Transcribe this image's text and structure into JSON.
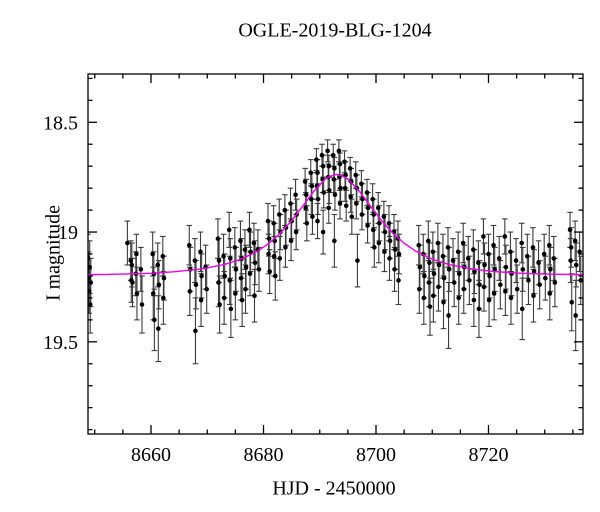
{
  "figure": {
    "title": "OGLE-2019-BLG-1204",
    "xlabel": "HJD - 2450000",
    "ylabel": "I magnitude"
  },
  "chart_data": {
    "type": "scatter",
    "title": "OGLE-2019-BLG-1204",
    "xlabel": "HJD - 2450000",
    "ylabel": "I magnitude",
    "y_axis_inverted": true,
    "grid": false,
    "legend": "none",
    "xlim": [
      8648.8,
      8736.8
    ],
    "ylim": [
      18.28,
      19.92
    ],
    "x_major_ticks": [
      8660,
      8680,
      8700,
      8720
    ],
    "x_major_labels": [
      "8660",
      "8680",
      "8700",
      "8720"
    ],
    "x_minor_step": 5,
    "y_major_ticks": [
      18.5,
      19.0,
      19.5
    ],
    "y_major_labels": [
      "18.5",
      "19",
      "19.5"
    ],
    "y_minor_step": 0.1,
    "colors": {
      "points": "#000000",
      "error_bars": "#3d3d3d",
      "model_curve": "#ee00ee",
      "axis": "#000000",
      "background": "#ffffff"
    },
    "model_curve": [
      [
        8648.8,
        19.194
      ],
      [
        8652,
        19.193
      ],
      [
        8656,
        19.191
      ],
      [
        8660,
        19.188
      ],
      [
        8664,
        19.181
      ],
      [
        8669,
        19.168
      ],
      [
        8673,
        19.148
      ],
      [
        8676,
        19.124
      ],
      [
        8679,
        19.086
      ],
      [
        8681,
        19.051
      ],
      [
        8683,
        19.005
      ],
      [
        8685,
        18.948
      ],
      [
        8687,
        18.881
      ],
      [
        8689,
        18.813
      ],
      [
        8691,
        18.758
      ],
      [
        8692,
        18.745
      ],
      [
        8693,
        18.737
      ],
      [
        8694,
        18.745
      ],
      [
        8695,
        18.758
      ],
      [
        8697,
        18.813
      ],
      [
        8699,
        18.881
      ],
      [
        8701,
        18.948
      ],
      [
        8703,
        19.005
      ],
      [
        8705,
        19.051
      ],
      [
        8707,
        19.086
      ],
      [
        8710,
        19.124
      ],
      [
        8713,
        19.148
      ],
      [
        8717,
        19.168
      ],
      [
        8721,
        19.18
      ],
      [
        8726,
        19.188
      ],
      [
        8731,
        19.192
      ],
      [
        8736.8,
        19.194
      ]
    ],
    "points": [
      [
        8648.8,
        19.12,
        0.11
      ],
      [
        8648.9,
        19.21,
        0.12
      ],
      [
        8649.0,
        19.27,
        0.1
      ],
      [
        8649.1,
        19.16,
        0.12
      ],
      [
        8649.2,
        19.33,
        0.13
      ],
      [
        8649.3,
        19.23,
        0.11
      ],
      [
        8655.8,
        19.05,
        0.1
      ],
      [
        8656.4,
        19.13,
        0.09
      ],
      [
        8656.6,
        19.15,
        0.1
      ],
      [
        8656.5,
        19.22,
        0.1
      ],
      [
        8656.7,
        19.23,
        0.11
      ],
      [
        8657.3,
        19.19,
        0.1
      ],
      [
        8657.4,
        19.1,
        0.09
      ],
      [
        8657.5,
        19.28,
        0.12
      ],
      [
        8658.2,
        19.17,
        0.1
      ],
      [
        8658.4,
        19.33,
        0.13
      ],
      [
        8660.3,
        19.1,
        0.1
      ],
      [
        8660.5,
        19.19,
        0.1
      ],
      [
        8660.4,
        19.28,
        0.12
      ],
      [
        8660.6,
        19.4,
        0.14
      ],
      [
        8661.2,
        19.15,
        0.1
      ],
      [
        8661.4,
        19.24,
        0.11
      ],
      [
        8661.3,
        19.44,
        0.15
      ],
      [
        8662.1,
        19.11,
        0.09
      ],
      [
        8662.3,
        19.21,
        0.1
      ],
      [
        8662.2,
        19.3,
        0.12
      ],
      [
        8666.8,
        19.06,
        0.09
      ],
      [
        8667.0,
        19.17,
        0.1
      ],
      [
        8666.9,
        19.27,
        0.11
      ],
      [
        8667.8,
        19.13,
        0.1
      ],
      [
        8668.0,
        19.24,
        0.11
      ],
      [
        8667.9,
        19.45,
        0.15
      ],
      [
        8668.8,
        19.09,
        0.09
      ],
      [
        8669.0,
        19.2,
        0.1
      ],
      [
        8668.9,
        19.31,
        0.12
      ],
      [
        8669.7,
        19.16,
        0.1
      ],
      [
        8669.9,
        19.26,
        0.11
      ],
      [
        8671.9,
        19.03,
        0.09
      ],
      [
        8672.1,
        19.13,
        0.1
      ],
      [
        8672.0,
        19.23,
        0.11
      ],
      [
        8672.2,
        19.33,
        0.13
      ],
      [
        8672.9,
        19.11,
        0.1
      ],
      [
        8673.1,
        19.2,
        0.1
      ],
      [
        8673.0,
        19.3,
        0.12
      ],
      [
        8673.9,
        18.99,
        0.08
      ],
      [
        8674.1,
        19.12,
        0.09
      ],
      [
        8674.0,
        19.22,
        0.11
      ],
      [
        8674.2,
        19.35,
        0.13
      ],
      [
        8674.9,
        19.07,
        0.09
      ],
      [
        8675.1,
        19.17,
        0.1
      ],
      [
        8675.0,
        19.28,
        0.12
      ],
      [
        8675.9,
        19.04,
        0.09
      ],
      [
        8676.1,
        19.12,
        0.09
      ],
      [
        8676.0,
        19.21,
        0.1
      ],
      [
        8676.2,
        19.31,
        0.12
      ],
      [
        8676.7,
        19.08,
        0.09
      ],
      [
        8676.9,
        19.16,
        0.1
      ],
      [
        8676.8,
        19.26,
        0.11
      ],
      [
        8677.5,
        18.99,
        0.08
      ],
      [
        8677.7,
        19.09,
        0.09
      ],
      [
        8677.6,
        19.19,
        0.1
      ],
      [
        8678.3,
        19.05,
        0.09
      ],
      [
        8678.5,
        19.14,
        0.1
      ],
      [
        8678.4,
        19.29,
        0.12
      ],
      [
        8679.0,
        19.08,
        0.09
      ],
      [
        8679.2,
        19.17,
        0.1
      ],
      [
        8680.8,
        18.95,
        0.08
      ],
      [
        8681.0,
        19.03,
        0.08
      ],
      [
        8680.9,
        19.1,
        0.09
      ],
      [
        8681.1,
        19.18,
        0.1
      ],
      [
        8681.8,
        18.96,
        0.08
      ],
      [
        8682.0,
        19.04,
        0.08
      ],
      [
        8681.9,
        19.11,
        0.09
      ],
      [
        8682.1,
        19.2,
        0.11
      ],
      [
        8682.8,
        18.92,
        0.07
      ],
      [
        8683.0,
        19.0,
        0.08
      ],
      [
        8682.9,
        19.12,
        0.1
      ],
      [
        8683.8,
        18.9,
        0.07
      ],
      [
        8684.0,
        18.98,
        0.08
      ],
      [
        8683.9,
        19.07,
        0.09
      ],
      [
        8684.8,
        18.87,
        0.07
      ],
      [
        8685.0,
        18.95,
        0.08
      ],
      [
        8684.9,
        19.04,
        0.09
      ],
      [
        8685.7,
        18.83,
        0.07
      ],
      [
        8685.9,
        18.92,
        0.07
      ],
      [
        8685.8,
        19.0,
        0.08
      ],
      [
        8687.4,
        18.77,
        0.06
      ],
      [
        8687.6,
        18.83,
        0.07
      ],
      [
        8687.5,
        18.89,
        0.07
      ],
      [
        8687.7,
        18.96,
        0.08
      ],
      [
        8688.4,
        18.73,
        0.06
      ],
      [
        8688.6,
        18.79,
        0.06
      ],
      [
        8688.5,
        18.85,
        0.07
      ],
      [
        8688.7,
        18.93,
        0.08
      ],
      [
        8689.4,
        18.67,
        0.05
      ],
      [
        8689.6,
        18.73,
        0.06
      ],
      [
        8689.5,
        18.79,
        0.06
      ],
      [
        8689.7,
        18.85,
        0.07
      ],
      [
        8689.6,
        18.95,
        0.08
      ],
      [
        8690.4,
        18.65,
        0.05
      ],
      [
        8690.6,
        18.7,
        0.05
      ],
      [
        8690.5,
        18.76,
        0.06
      ],
      [
        8690.7,
        18.82,
        0.07
      ],
      [
        8690.6,
        19.0,
        0.1
      ],
      [
        8691.4,
        18.63,
        0.05
      ],
      [
        8691.6,
        18.7,
        0.05
      ],
      [
        8691.5,
        18.75,
        0.06
      ],
      [
        8691.7,
        18.81,
        0.06
      ],
      [
        8691.6,
        18.89,
        0.07
      ],
      [
        8692.4,
        18.65,
        0.05
      ],
      [
        8692.6,
        18.71,
        0.05
      ],
      [
        8692.5,
        18.76,
        0.06
      ],
      [
        8692.7,
        18.83,
        0.07
      ],
      [
        8692.6,
        19.04,
        0.12
      ],
      [
        8693.4,
        18.63,
        0.05
      ],
      [
        8693.6,
        18.69,
        0.05
      ],
      [
        8693.5,
        18.75,
        0.06
      ],
      [
        8693.7,
        18.8,
        0.06
      ],
      [
        8693.6,
        18.87,
        0.07
      ],
      [
        8694.4,
        18.68,
        0.05
      ],
      [
        8694.6,
        18.74,
        0.06
      ],
      [
        8694.5,
        18.8,
        0.06
      ],
      [
        8694.7,
        18.88,
        0.07
      ],
      [
        8695.4,
        18.71,
        0.05
      ],
      [
        8695.6,
        18.77,
        0.06
      ],
      [
        8695.5,
        18.84,
        0.07
      ],
      [
        8695.7,
        18.93,
        0.08
      ],
      [
        8696.4,
        18.74,
        0.06
      ],
      [
        8696.6,
        18.8,
        0.06
      ],
      [
        8696.5,
        18.87,
        0.07
      ],
      [
        8696.7,
        19.13,
        0.12
      ],
      [
        8697.4,
        18.78,
        0.06
      ],
      [
        8697.6,
        18.85,
        0.07
      ],
      [
        8697.5,
        18.92,
        0.07
      ],
      [
        8698.4,
        18.82,
        0.06
      ],
      [
        8698.6,
        18.89,
        0.07
      ],
      [
        8698.5,
        18.97,
        0.08
      ],
      [
        8699.4,
        18.85,
        0.07
      ],
      [
        8699.6,
        18.92,
        0.07
      ],
      [
        8699.5,
        18.99,
        0.08
      ],
      [
        8699.7,
        19.07,
        0.09
      ],
      [
        8700.4,
        18.89,
        0.07
      ],
      [
        8700.6,
        18.96,
        0.08
      ],
      [
        8700.5,
        19.05,
        0.09
      ],
      [
        8701.4,
        18.93,
        0.07
      ],
      [
        8701.6,
        19.0,
        0.08
      ],
      [
        8701.5,
        19.09,
        0.09
      ],
      [
        8702.3,
        18.96,
        0.08
      ],
      [
        8702.5,
        19.04,
        0.08
      ],
      [
        8702.4,
        19.12,
        0.1
      ],
      [
        8703.2,
        19.0,
        0.08
      ],
      [
        8703.4,
        19.08,
        0.09
      ],
      [
        8703.3,
        19.17,
        0.1
      ],
      [
        8703.9,
        19.03,
        0.08
      ],
      [
        8704.1,
        19.1,
        0.09
      ],
      [
        8704.0,
        19.22,
        0.11
      ],
      [
        8707.6,
        19.06,
        0.09
      ],
      [
        8707.8,
        19.16,
        0.1
      ],
      [
        8707.7,
        19.26,
        0.11
      ],
      [
        8708.4,
        19.1,
        0.09
      ],
      [
        8708.6,
        19.2,
        0.1
      ],
      [
        8708.5,
        19.3,
        0.12
      ],
      [
        8709.3,
        19.04,
        0.09
      ],
      [
        8709.5,
        19.14,
        0.09
      ],
      [
        8709.4,
        19.23,
        0.11
      ],
      [
        8709.6,
        19.34,
        0.13
      ],
      [
        8710.1,
        19.09,
        0.09
      ],
      [
        8710.3,
        19.19,
        0.1
      ],
      [
        8710.2,
        19.29,
        0.12
      ],
      [
        8711.0,
        19.05,
        0.09
      ],
      [
        8711.2,
        19.15,
        0.1
      ],
      [
        8711.1,
        19.25,
        0.11
      ],
      [
        8711.9,
        19.11,
        0.1
      ],
      [
        8712.1,
        19.21,
        0.1
      ],
      [
        8712.0,
        19.32,
        0.12
      ],
      [
        8712.8,
        19.07,
        0.09
      ],
      [
        8713.0,
        19.17,
        0.1
      ],
      [
        8712.9,
        19.38,
        0.15
      ],
      [
        8713.7,
        19.13,
        0.1
      ],
      [
        8713.9,
        19.23,
        0.11
      ],
      [
        8714.6,
        19.09,
        0.09
      ],
      [
        8714.8,
        19.19,
        0.1
      ],
      [
        8714.7,
        19.3,
        0.12
      ],
      [
        8715.5,
        19.05,
        0.09
      ],
      [
        8715.7,
        19.16,
        0.1
      ],
      [
        8715.6,
        19.26,
        0.11
      ],
      [
        8716.4,
        19.12,
        0.1
      ],
      [
        8716.6,
        19.22,
        0.11
      ],
      [
        8717.3,
        19.08,
        0.09
      ],
      [
        8717.5,
        19.18,
        0.1
      ],
      [
        8717.4,
        19.31,
        0.12
      ],
      [
        8718.2,
        19.14,
        0.1
      ],
      [
        8718.4,
        19.24,
        0.11
      ],
      [
        8718.3,
        19.35,
        0.13
      ],
      [
        8719.1,
        19.02,
        0.08
      ],
      [
        8719.3,
        19.15,
        0.1
      ],
      [
        8719.2,
        19.25,
        0.11
      ],
      [
        8720.0,
        19.1,
        0.09
      ],
      [
        8720.2,
        19.2,
        0.1
      ],
      [
        8720.1,
        19.31,
        0.12
      ],
      [
        8720.9,
        19.06,
        0.09
      ],
      [
        8721.1,
        19.17,
        0.1
      ],
      [
        8721.0,
        19.28,
        0.12
      ],
      [
        8721.9,
        19.12,
        0.1
      ],
      [
        8722.1,
        19.24,
        0.11
      ],
      [
        8722.9,
        19.02,
        0.08
      ],
      [
        8723.1,
        19.16,
        0.1
      ],
      [
        8723.0,
        19.27,
        0.11
      ],
      [
        8723.9,
        19.09,
        0.09
      ],
      [
        8724.1,
        19.19,
        0.1
      ],
      [
        8724.0,
        19.3,
        0.12
      ],
      [
        8724.9,
        19.13,
        0.1
      ],
      [
        8725.1,
        19.26,
        0.11
      ],
      [
        8725.9,
        19.05,
        0.09
      ],
      [
        8726.1,
        19.17,
        0.1
      ],
      [
        8726.0,
        19.35,
        0.14
      ],
      [
        8726.9,
        19.11,
        0.1
      ],
      [
        8727.1,
        19.22,
        0.11
      ],
      [
        8727.9,
        19.07,
        0.09
      ],
      [
        8728.1,
        19.18,
        0.1
      ],
      [
        8728.0,
        19.29,
        0.12
      ],
      [
        8728.9,
        19.14,
        0.1
      ],
      [
        8729.1,
        19.24,
        0.11
      ],
      [
        8729.9,
        19.1,
        0.09
      ],
      [
        8730.1,
        19.21,
        0.1
      ],
      [
        8730.8,
        19.06,
        0.09
      ],
      [
        8731.0,
        19.17,
        0.1
      ],
      [
        8730.9,
        19.28,
        0.12
      ],
      [
        8731.6,
        19.12,
        0.1
      ],
      [
        8731.8,
        19.23,
        0.11
      ],
      [
        8734.5,
        18.99,
        0.08
      ],
      [
        8734.7,
        19.07,
        0.09
      ],
      [
        8734.6,
        19.13,
        0.1
      ],
      [
        8734.8,
        19.32,
        0.13
      ],
      [
        8735.4,
        19.04,
        0.09
      ],
      [
        8735.6,
        19.15,
        0.1
      ],
      [
        8735.5,
        19.38,
        0.16
      ],
      [
        8736.2,
        19.09,
        0.09
      ],
      [
        8736.4,
        19.22,
        0.11
      ]
    ]
  }
}
